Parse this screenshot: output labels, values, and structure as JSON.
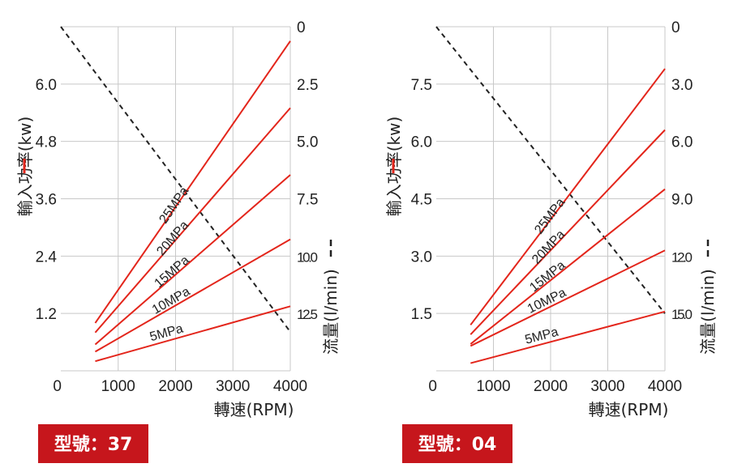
{
  "chart_data": [
    {
      "type": "line",
      "model_label": "型號：37",
      "xlabel": "轉速(RPM)",
      "ylabel_left": "輸入功率(kw)",
      "ylabel_right": "流量(l/min)",
      "x_ticks": [
        "0",
        "1000",
        "2000",
        "3000",
        "4000"
      ],
      "left_ticks": [
        "1.2",
        "2.4",
        "3.6",
        "4.8",
        "6.0"
      ],
      "right_ticks": [
        "0",
        "2.5",
        "5.0",
        "7.5",
        "10.0",
        "12.5"
      ],
      "xlim": [
        0,
        4000
      ],
      "ylim_left": [
        0,
        7.2
      ],
      "ylim_right": [
        0,
        15
      ],
      "power_series": [
        {
          "name": "5MPa",
          "x": [
            600,
            4000
          ],
          "y": [
            0.2,
            1.35
          ]
        },
        {
          "name": "10MPa",
          "x": [
            600,
            4000
          ],
          "y": [
            0.4,
            2.75
          ]
        },
        {
          "name": "15MPa",
          "x": [
            600,
            4000
          ],
          "y": [
            0.55,
            4.1
          ]
        },
        {
          "name": "20MPa",
          "x": [
            600,
            4000
          ],
          "y": [
            0.8,
            5.5
          ]
        },
        {
          "name": "25MPa",
          "x": [
            600,
            4000
          ],
          "y": [
            1.0,
            6.9
          ]
        }
      ],
      "flow_series": {
        "x": [
          0,
          4000
        ],
        "y": [
          0,
          13.3
        ]
      }
    },
    {
      "type": "line",
      "model_label": "型號：04",
      "xlabel": "轉速(RPM)",
      "ylabel_left": "輸入功率(kw)",
      "ylabel_right": "流量(l/min)",
      "x_ticks": [
        "0",
        "1000",
        "2000",
        "3000",
        "4000"
      ],
      "left_ticks": [
        "1.5",
        "3.0",
        "4.5",
        "6.0",
        "7.5"
      ],
      "right_ticks": [
        "0",
        "3.0",
        "6.0",
        "9.0",
        "12.0",
        "15.0"
      ],
      "xlim": [
        0,
        4000
      ],
      "ylim_left": [
        0,
        9
      ],
      "ylim_right": [
        0,
        18
      ],
      "power_series": [
        {
          "name": "5MPa",
          "x": [
            600,
            4000
          ],
          "y": [
            0.2,
            1.55
          ]
        },
        {
          "name": "10MPa",
          "x": [
            600,
            4000
          ],
          "y": [
            0.65,
            3.15
          ]
        },
        {
          "name": "15MPa",
          "x": [
            600,
            4000
          ],
          "y": [
            0.7,
            4.75
          ]
        },
        {
          "name": "20MPa",
          "x": [
            600,
            4000
          ],
          "y": [
            0.95,
            6.3
          ]
        },
        {
          "name": "25MPa",
          "x": [
            600,
            4000
          ],
          "y": [
            1.2,
            7.9
          ]
        }
      ],
      "flow_series": {
        "x": [
          0,
          4000
        ],
        "y": [
          0,
          15.0
        ]
      }
    }
  ],
  "colors": {
    "power_line": "#e3251b",
    "flow_line": "#222222",
    "grid": "#c8c8c8",
    "badge": "#c6161c",
    "legend_mark_power": "#e3251b",
    "legend_mark_flow": "#222222"
  }
}
